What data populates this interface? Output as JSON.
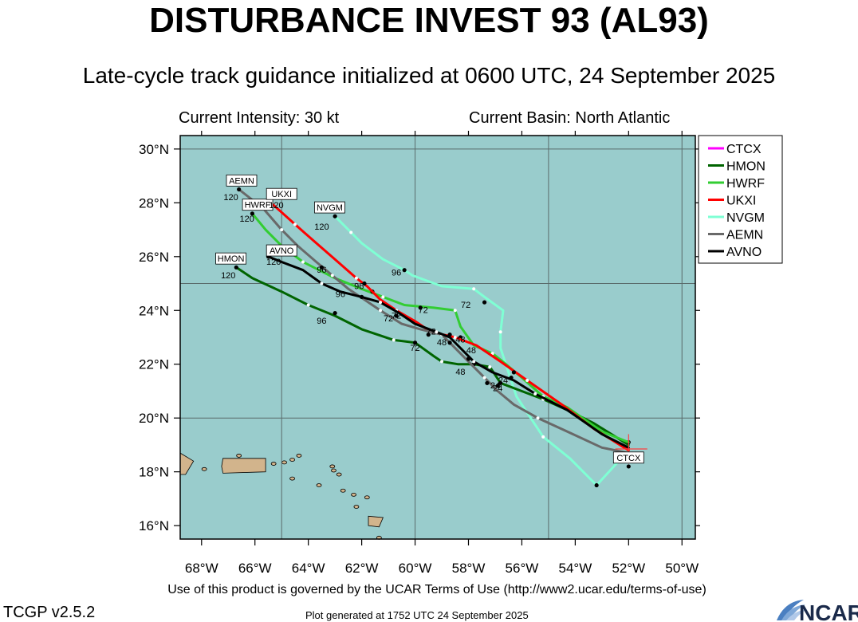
{
  "header": {
    "title": "DISTURBANCE INVEST 93 (AL93)",
    "subtitle": "Late-cycle track guidance initialized at 0600 UTC, 24 September 2025",
    "intensity": "Current Intensity: 30 kt",
    "basin": "Current Basin: North Atlantic"
  },
  "footer": {
    "terms": "Use of this product is governed by the UCAR Terms of Use (http://www2.ucar.edu/terms-of-use)",
    "version": "TCGP v2.5.2",
    "generated": "Plot generated at 1752 UTC   24 September 2025",
    "logo_text": "NCAR"
  },
  "colors": {
    "ocean": "#99cccc",
    "land": "#d2b48c",
    "grid": "#5a6b6b"
  },
  "chart_data": {
    "type": "track-map",
    "lon_ticks": [
      -68,
      -66,
      -64,
      -62,
      -60,
      -58,
      -56,
      -54,
      -52,
      -50
    ],
    "lon_labels": [
      "68°W",
      "66°W",
      "64°W",
      "62°W",
      "60°W",
      "58°W",
      "56°W",
      "54°W",
      "52°W",
      "50°W"
    ],
    "lat_ticks": [
      16,
      18,
      20,
      22,
      24,
      26,
      28,
      30
    ],
    "lat_labels": [
      "16°N",
      "18°N",
      "20°N",
      "22°N",
      "24°N",
      "26°N",
      "28°N",
      "30°N"
    ],
    "xlim": [
      -68.8,
      -49.5
    ],
    "ylim": [
      15.5,
      30.5
    ],
    "grid_lon": [
      -65,
      -60,
      -55,
      -50
    ],
    "grid_lat": [
      20,
      25,
      30
    ],
    "legend": [
      "CTCX",
      "HMON",
      "HWRF",
      "UKXI",
      "NVGM",
      "AEMN",
      "AVNO"
    ],
    "series": [
      {
        "name": "NVGM",
        "color": "#7fffd4",
        "points": [
          [
            -52.0,
            18.8
          ],
          [
            -53.2,
            17.5
          ],
          [
            -54.2,
            18.5
          ],
          [
            -55.2,
            19.3
          ],
          [
            -56.2,
            20.8
          ],
          [
            -56.8,
            22.6
          ],
          [
            -56.8,
            23.2
          ],
          [
            -56.7,
            24.0
          ],
          [
            -57.4,
            24.5
          ],
          [
            -57.8,
            24.8
          ],
          [
            -59.0,
            24.9
          ],
          [
            -60.1,
            25.3
          ],
          [
            -60.4,
            25.5
          ],
          [
            -61.2,
            25.9
          ],
          [
            -62.0,
            26.5
          ],
          [
            -62.4,
            26.9
          ],
          [
            -63.0,
            27.5
          ]
        ],
        "dots": [
          [
            -53.2,
            17.5
          ],
          [
            -57.4,
            24.3
          ],
          [
            -60.4,
            25.5
          ],
          [
            -63.0,
            27.5
          ]
        ],
        "labels": [
          {
            "text": "72",
            "lon": -58.1,
            "lat": 24.1
          },
          {
            "text": "96",
            "lon": -60.7,
            "lat": 25.3
          },
          {
            "text": "120",
            "lon": -63.5,
            "lat": 27.0
          }
        ],
        "box": {
          "text": "NVGM",
          "lon": -63.2,
          "lat": 27.8
        }
      },
      {
        "name": "HMON",
        "color": "#006400",
        "points": [
          [
            -52.0,
            19.0
          ],
          [
            -53.3,
            19.8
          ],
          [
            -54.3,
            20.3
          ],
          [
            -55.2,
            20.7
          ],
          [
            -56.0,
            21.0
          ],
          [
            -56.8,
            21.3
          ],
          [
            -57.2,
            21.9
          ],
          [
            -57.8,
            22.0
          ],
          [
            -58.4,
            22.0
          ],
          [
            -59.0,
            22.1
          ],
          [
            -59.3,
            22.3
          ],
          [
            -60.0,
            22.8
          ],
          [
            -60.8,
            22.9
          ],
          [
            -62.0,
            23.3
          ],
          [
            -63.0,
            23.8
          ],
          [
            -64.0,
            24.2
          ],
          [
            -65.0,
            24.7
          ],
          [
            -66.1,
            25.2
          ],
          [
            -66.7,
            25.6
          ]
        ],
        "dots": [
          [
            -52.0,
            19.1
          ],
          [
            -56.8,
            21.3
          ],
          [
            -57.8,
            22.0
          ],
          [
            -60.0,
            22.8
          ],
          [
            -63.0,
            23.9
          ],
          [
            -66.7,
            25.6
          ]
        ],
        "labels": [
          {
            "text": "48",
            "lon": -58.3,
            "lat": 21.6
          },
          {
            "text": "72",
            "lon": -60.0,
            "lat": 22.5
          },
          {
            "text": "96",
            "lon": -63.5,
            "lat": 23.5
          },
          {
            "text": "120",
            "lon": -67.0,
            "lat": 25.2
          }
        ],
        "box": {
          "text": "HMON",
          "lon": -66.9,
          "lat": 25.9
        }
      },
      {
        "name": "HWRF",
        "color": "#32cd32",
        "points": [
          [
            -52.0,
            19.1
          ],
          [
            -53.0,
            19.5
          ],
          [
            -54.3,
            20.4
          ],
          [
            -55.2,
            20.8
          ],
          [
            -56.0,
            21.5
          ],
          [
            -56.6,
            22.0
          ],
          [
            -57.1,
            22.4
          ],
          [
            -57.8,
            22.7
          ],
          [
            -58.3,
            23.4
          ],
          [
            -58.5,
            24.0
          ],
          [
            -59.3,
            24.1
          ],
          [
            -60.4,
            24.2
          ],
          [
            -61.2,
            24.5
          ],
          [
            -62.0,
            24.8
          ],
          [
            -63.0,
            25.2
          ],
          [
            -64.2,
            25.8
          ],
          [
            -65.0,
            26.4
          ],
          [
            -65.6,
            27.0
          ],
          [
            -66.1,
            27.6
          ]
        ],
        "dots": [
          [
            -56.4,
            21.5
          ],
          [
            -58.3,
            23.0
          ],
          [
            -59.8,
            24.1
          ],
          [
            -61.6,
            24.7
          ],
          [
            -66.1,
            27.6
          ]
        ],
        "labels": [
          {
            "text": "72",
            "lon": -59.7,
            "lat": 23.9
          },
          {
            "text": "96",
            "lon": -62.1,
            "lat": 24.8
          },
          {
            "text": "120",
            "lon": -66.3,
            "lat": 27.3
          }
        ],
        "box": {
          "text": "HWRF",
          "lon": -65.9,
          "lat": 27.9
        }
      },
      {
        "name": "UKXI",
        "color": "#ff0000",
        "points": [
          [
            -52.0,
            18.8
          ],
          [
            -53.3,
            19.6
          ],
          [
            -54.5,
            20.5
          ],
          [
            -55.8,
            21.4
          ],
          [
            -56.8,
            22.1
          ],
          [
            -57.7,
            22.7
          ],
          [
            -58.5,
            23.0
          ],
          [
            -59.4,
            23.2
          ],
          [
            -60.0,
            23.6
          ],
          [
            -60.7,
            24.0
          ],
          [
            -61.3,
            24.4
          ],
          [
            -61.8,
            24.9
          ],
          [
            -62.2,
            25.2
          ],
          [
            -63.0,
            25.9
          ],
          [
            -63.7,
            26.5
          ],
          [
            -64.5,
            27.2
          ],
          [
            -65.4,
            28.0
          ]
        ],
        "dots": [
          [
            -56.3,
            21.7
          ],
          [
            -58.7,
            23.1
          ],
          [
            -61.9,
            25.0
          ],
          [
            -65.4,
            28.0
          ]
        ],
        "labels": [
          {
            "text": "48",
            "lon": -58.3,
            "lat": 22.8
          },
          {
            "text": "72",
            "lon": -60.7,
            "lat": 23.7
          },
          {
            "text": "120",
            "lon": -65.2,
            "lat": 27.8
          }
        ],
        "box": {
          "text": "UKXI",
          "lon": -65.0,
          "lat": 28.3
        }
      },
      {
        "name": "AEMN",
        "color": "#696969",
        "points": [
          [
            -52.0,
            18.7
          ],
          [
            -53.0,
            18.9
          ],
          [
            -54.3,
            19.5
          ],
          [
            -55.4,
            20.0
          ],
          [
            -56.3,
            20.5
          ],
          [
            -56.9,
            21.0
          ],
          [
            -57.4,
            21.5
          ],
          [
            -58.0,
            22.1
          ],
          [
            -58.6,
            22.7
          ],
          [
            -59.0,
            23.1
          ],
          [
            -59.8,
            23.3
          ],
          [
            -60.5,
            23.5
          ],
          [
            -61.3,
            24.0
          ],
          [
            -61.9,
            24.4
          ],
          [
            -62.5,
            24.8
          ],
          [
            -63.1,
            25.3
          ],
          [
            -63.7,
            25.8
          ],
          [
            -64.4,
            26.4
          ],
          [
            -65.0,
            27.0
          ],
          [
            -65.7,
            27.8
          ],
          [
            -66.6,
            28.5
          ]
        ],
        "dots": [
          [
            -56.9,
            21.2
          ],
          [
            -58.7,
            22.8
          ],
          [
            -60.7,
            23.8
          ],
          [
            -63.5,
            25.6
          ],
          [
            -66.6,
            28.5
          ]
        ],
        "labels": [
          {
            "text": "24",
            "lon": -56.9,
            "lat": 21.0
          },
          {
            "text": "72",
            "lon": -61.0,
            "lat": 23.6
          },
          {
            "text": "96",
            "lon": -63.5,
            "lat": 25.4
          },
          {
            "text": "120",
            "lon": -66.9,
            "lat": 28.1
          }
        ],
        "box": {
          "text": "AEMN",
          "lon": -66.5,
          "lat": 28.8
        }
      },
      {
        "name": "AVNO",
        "color": "#000000",
        "points": [
          [
            -52.0,
            18.9
          ],
          [
            -53.0,
            19.4
          ],
          [
            -54.3,
            20.3
          ],
          [
            -55.5,
            20.9
          ],
          [
            -56.3,
            21.4
          ],
          [
            -57.1,
            21.7
          ],
          [
            -57.8,
            22.1
          ],
          [
            -58.3,
            22.6
          ],
          [
            -58.7,
            23.0
          ],
          [
            -59.2,
            23.2
          ],
          [
            -60.0,
            23.5
          ],
          [
            -60.6,
            23.9
          ],
          [
            -61.3,
            24.3
          ],
          [
            -62.0,
            24.5
          ],
          [
            -62.8,
            24.7
          ],
          [
            -63.5,
            25.0
          ],
          [
            -64.2,
            25.5
          ],
          [
            -65.0,
            25.8
          ],
          [
            -65.5,
            26.0
          ]
        ],
        "dots": [
          [
            -51.6,
            18.6
          ],
          [
            -52.0,
            18.2
          ],
          [
            -57.3,
            21.3
          ],
          [
            -58.0,
            22.2
          ],
          [
            -59.5,
            23.1
          ],
          [
            -62.0,
            24.5
          ],
          [
            -65.5,
            26.0
          ]
        ],
        "labels": [
          {
            "text": "24",
            "lon": -57.0,
            "lat": 21.1
          },
          {
            "text": "48",
            "lon": -59.0,
            "lat": 22.7
          },
          {
            "text": "96",
            "lon": -62.8,
            "lat": 24.5
          },
          {
            "text": "120",
            "lon": -65.3,
            "lat": 25.7
          }
        ],
        "box": {
          "text": "AVNO",
          "lon": -65.0,
          "lat": 26.2
        }
      },
      {
        "name": "CTCX",
        "color": "#ff00ff",
        "points": [],
        "dots": [],
        "labels": [
          {
            "text": "24",
            "lon": -56.7,
            "lat": 21.3
          },
          {
            "text": "48",
            "lon": -57.9,
            "lat": 22.4
          },
          {
            "text": "72",
            "lon": -59.4,
            "lat": 23.1
          }
        ],
        "box": {
          "text": "CTCX",
          "lon": -52.0,
          "lat": 18.5
        }
      }
    ]
  }
}
